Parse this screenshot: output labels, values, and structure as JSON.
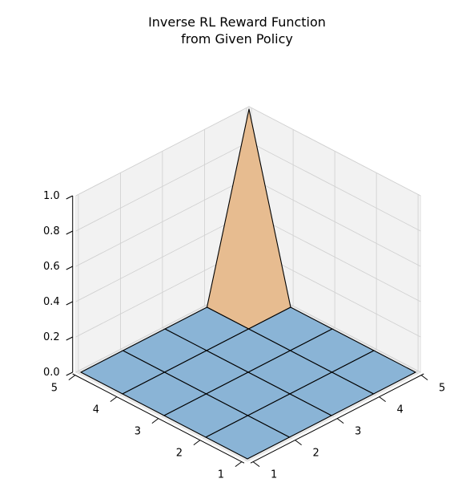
{
  "chart_data": {
    "type": "surface3d",
    "title_line1": "Inverse RL Reward Function",
    "title_line2": "from Given Policy",
    "x": [
      1,
      2,
      3,
      4,
      5
    ],
    "y": [
      1,
      2,
      3,
      4,
      5
    ],
    "z": [
      [
        0,
        0,
        0,
        0,
        0
      ],
      [
        0,
        0,
        0,
        0,
        0
      ],
      [
        0,
        0,
        0,
        0,
        0
      ],
      [
        0,
        0,
        0,
        0,
        0
      ],
      [
        0,
        0,
        0,
        0,
        1
      ]
    ],
    "zlim": [
      0,
      1
    ],
    "x_ticks": [
      "1",
      "2",
      "3",
      "4",
      "5"
    ],
    "y_ticks": [
      "1",
      "2",
      "3",
      "4",
      "5"
    ],
    "z_ticks": [
      "0.0",
      "0.2",
      "0.4",
      "0.6",
      "0.8",
      "1.0"
    ],
    "grid": true,
    "colors": {
      "low": "#8ab4d6",
      "mid": "#f8b783",
      "high": "#80dde0",
      "edge": "#000000",
      "pane": "#f2f2f2",
      "grid": "#cfcfcf"
    }
  }
}
